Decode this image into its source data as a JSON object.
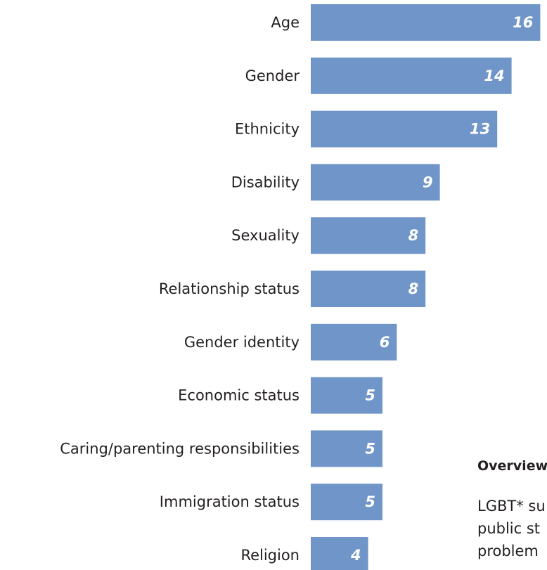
{
  "chart_data": {
    "type": "bar",
    "orientation": "horizontal",
    "categories": [
      "Age",
      "Gender",
      "Ethnicity",
      "Disability",
      "Sexuality",
      "Relationship status",
      "Gender identity",
      "Economic status",
      "Caring/parenting responsibilities",
      "Immigration status",
      "Religion"
    ],
    "values": [
      16,
      14,
      13,
      9,
      8,
      8,
      6,
      5,
      5,
      5,
      4
    ],
    "title": "",
    "xlabel": "",
    "ylabel": "",
    "xlim": [
      0,
      16
    ],
    "grid": false,
    "data_labels": true,
    "bar_color": "#7096c9"
  },
  "overview": {
    "heading": "Overview",
    "lines": [
      "LGBT* su",
      "public st",
      "problem"
    ]
  },
  "colors": {
    "bar": "#7096c9",
    "text": "#231f20",
    "value_label": "#ffffff"
  }
}
